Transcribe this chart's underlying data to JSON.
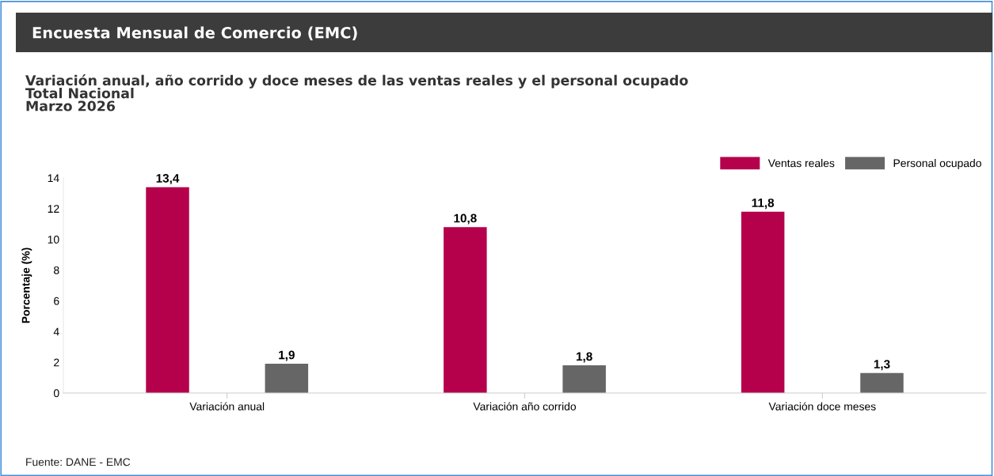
{
  "chart_data": {
    "type": "bar",
    "title": "Encuesta Mensual de Comercio (EMC)",
    "subtitle": "Variación anual, año corrido y doce meses de las ventas reales y el personal ocupado\nTotal Nacional\nMarzo 2026",
    "ylabel": "Porcentaje (%)",
    "categories": [
      "Variación anual",
      "Variación año corrido",
      "Variación doce meses"
    ],
    "series": [
      {
        "name": "Ventas reales",
        "color": "#b5004b",
        "values": [
          13.4,
          10.8,
          11.8
        ],
        "value_labels": [
          "13,4",
          "10,8",
          "11,8"
        ]
      },
      {
        "name": "Personal ocupado",
        "color": "#666666",
        "values": [
          1.9,
          1.8,
          1.3
        ],
        "value_labels": [
          "1,9",
          "1,8",
          "1,3"
        ]
      }
    ],
    "ylim": [
      0,
      14
    ],
    "yticks": [
      0,
      2,
      4,
      6,
      8,
      10,
      12,
      14
    ],
    "grid": false,
    "legend": "top right",
    "annotations": [
      "Fuente: DANE - EMC"
    ]
  }
}
